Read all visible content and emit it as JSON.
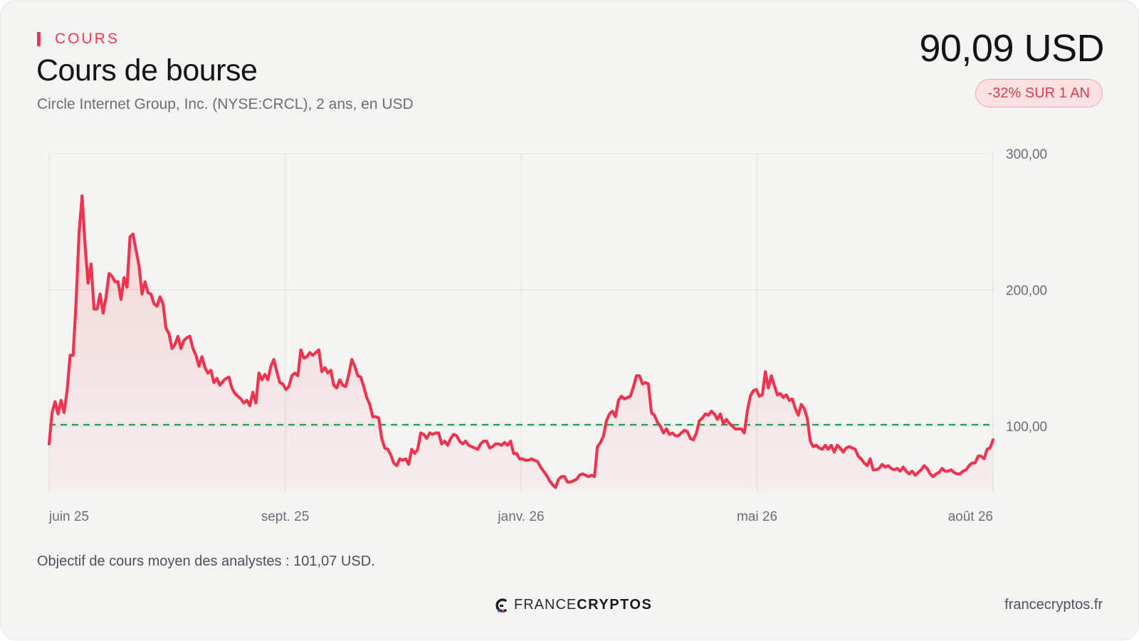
{
  "header": {
    "eyebrow": "COURS",
    "title": "Cours de bourse",
    "subtitle": "Circle Internet Group, Inc. (NYSE:CRCL), 2 ans, en USD",
    "price": "90,09 USD",
    "change_badge": "-32% SUR 1 AN"
  },
  "footer": {
    "note": "Objectif de cours moyen des analystes : 101,07 USD.",
    "brand_light": "FRANCE",
    "brand_bold": "CRYPTOS",
    "site": "francecryptos.fr"
  },
  "colors": {
    "accent": "#f0374f",
    "line": "#f0344f",
    "target": "#22a150",
    "badge_bg": "#fbe1e3"
  },
  "chart_data": {
    "type": "area",
    "series": [
      {
        "values": [
          87,
          110,
          118,
          109,
          119,
          110,
          126,
          152,
          152,
          191,
          242,
          269,
          233,
          205,
          219,
          186,
          186,
          197,
          183,
          195,
          212,
          210,
          206,
          206,
          193,
          209,
          202,
          239,
          241,
          229,
          218,
          197,
          206,
          198,
          197,
          190,
          188,
          195,
          190,
          172,
          168,
          157,
          160,
          166,
          157,
          163,
          165,
          166,
          157,
          152,
          144,
          151,
          143,
          139,
          141,
          132,
          135,
          130,
          133,
          135,
          136,
          128,
          124,
          122,
          120,
          117,
          119,
          115,
          125,
          117,
          139,
          134,
          138,
          134,
          144,
          149,
          140,
          132,
          131,
          127,
          129,
          137,
          139,
          137,
          156,
          150,
          151,
          154,
          152,
          154,
          156,
          140,
          143,
          139,
          141,
          130,
          128,
          134,
          130,
          129,
          138,
          149,
          144,
          137,
          136,
          129,
          121,
          116,
          107,
          107,
          106,
          91,
          84,
          83,
          79,
          73,
          71,
          76,
          75,
          76,
          72,
          83,
          80,
          83,
          95,
          94,
          91,
          95,
          94,
          95,
          95,
          87,
          89,
          86,
          91,
          94,
          93,
          89,
          87,
          89,
          86,
          85,
          84,
          83,
          87,
          89,
          89,
          84,
          85,
          87,
          87,
          86,
          88,
          86,
          89,
          80,
          80,
          76,
          76,
          75,
          75,
          76,
          75,
          74,
          70,
          67,
          64,
          60,
          57,
          55,
          61,
          63,
          63,
          59,
          59,
          60,
          61,
          64,
          65,
          64,
          63,
          64,
          63,
          85,
          88,
          93,
          104,
          109,
          111,
          107,
          119,
          122,
          120,
          121,
          122,
          129,
          137,
          137,
          131,
          132,
          131,
          110,
          108,
          103,
          100,
          95,
          98,
          94,
          95,
          93,
          93,
          95,
          97,
          96,
          91,
          90,
          95,
          104,
          106,
          109,
          108,
          111,
          109,
          105,
          109,
          102,
          105,
          102,
          100,
          98,
          98,
          98,
          95,
          111,
          122,
          126,
          127,
          122,
          123,
          140,
          128,
          137,
          130,
          123,
          124,
          121,
          123,
          119,
          120,
          113,
          108,
          116,
          113,
          106,
          89,
          85,
          86,
          84,
          83,
          86,
          83,
          86,
          81,
          86,
          84,
          81,
          84,
          85,
          84,
          83,
          78,
          76,
          73,
          71,
          76,
          68,
          68,
          69,
          72,
          70,
          71,
          69,
          68,
          69,
          67,
          70,
          67,
          65,
          67,
          64,
          66,
          68,
          71,
          69,
          65,
          63,
          65,
          66,
          69,
          67,
          67,
          68,
          66,
          65,
          65,
          67,
          68,
          71,
          73,
          73,
          78,
          78,
          76,
          83,
          84,
          90
        ]
      }
    ],
    "target": 101.07,
    "x_ticks": [
      "juin 25",
      "sept. 25",
      "janv. 26",
      "mai 26",
      "août 26"
    ],
    "y_ticks": [
      {
        "value": 100,
        "label": "100,00"
      },
      {
        "value": 200,
        "label": "200,00"
      },
      {
        "value": 300,
        "label": "300,00"
      }
    ],
    "ylim": [
      52,
      300
    ],
    "grid": true,
    "y_axis_side": "right"
  }
}
